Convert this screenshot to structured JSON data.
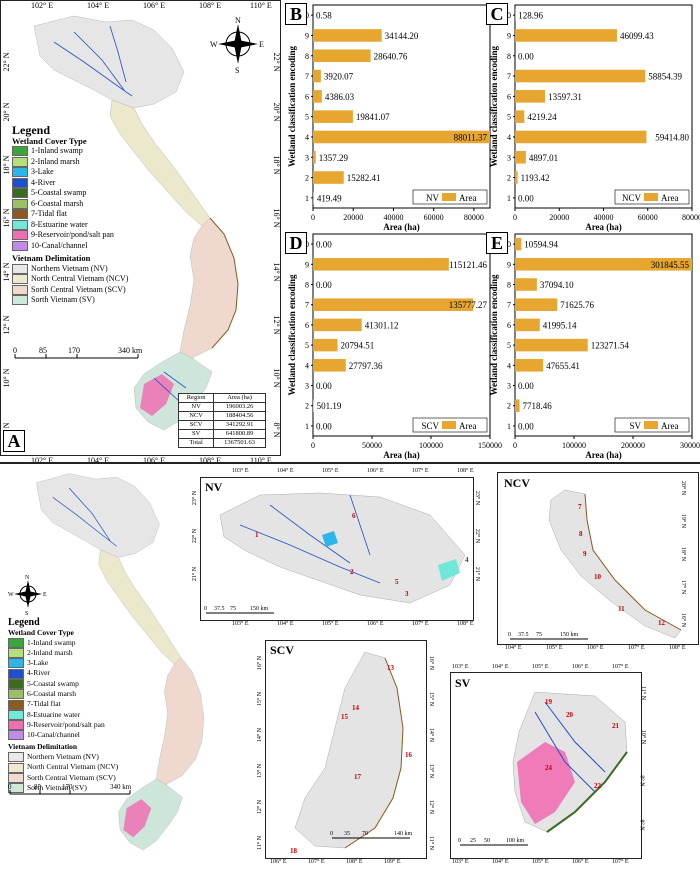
{
  "panel_labels": {
    "a": "A",
    "b": "B",
    "c": "C",
    "d": "D",
    "e": "E"
  },
  "map_a": {
    "lon_ticks": [
      "102° E",
      "104° E",
      "106° E",
      "108° E",
      "110° E"
    ],
    "lat_ticks": [
      "22° N",
      "20° N",
      "18° N",
      "16° N",
      "14° N",
      "12° N",
      "10° N",
      "8° N"
    ],
    "compass": {
      "n": "N",
      "s": "S",
      "e": "E",
      "w": "W"
    },
    "scale": [
      "0",
      "85",
      "170",
      "340 km"
    ]
  },
  "legend": {
    "title": "Legend",
    "wetland_title": "Wetland Cover Type",
    "wetland_items": [
      {
        "label": "1-Inland swamp",
        "color": "#3aa63a"
      },
      {
        "label": "2-Inland marsh",
        "color": "#b3e07a"
      },
      {
        "label": "3-Lake",
        "color": "#2bb5e8"
      },
      {
        "label": "4-River",
        "color": "#1f4fd1"
      },
      {
        "label": "5-Coastal swamp",
        "color": "#3b6b1f"
      },
      {
        "label": "6-Coastal marsh",
        "color": "#9bc066"
      },
      {
        "label": "7-Tidal flat",
        "color": "#8a5a1f"
      },
      {
        "label": "8-Estuarine water",
        "color": "#6fe8d8"
      },
      {
        "label": "9-Reservoir/pond/salt pan",
        "color": "#f06fb3"
      },
      {
        "label": "10-Canal/channel",
        "color": "#c08ae8"
      }
    ],
    "region_title": "Vietnam Delimitation",
    "region_items": [
      {
        "label": "Northern Vietnam (NV)",
        "color": "#e8e8e8"
      },
      {
        "label": "North Central Vietnam (NCV)",
        "color": "#ece9cf"
      },
      {
        "label": "Sorth Central Vietnam (SCV)",
        "color": "#f0d9cf"
      },
      {
        "label": "Sorth Vietnam (SV)",
        "color": "#cfe8dc"
      }
    ]
  },
  "area_table": {
    "headers": [
      "Region",
      "Area (ha)"
    ],
    "rows": [
      [
        "NV",
        "196003.26"
      ],
      [
        "NCV",
        "188404.56"
      ],
      [
        "SCV",
        "341292.91"
      ],
      [
        "SV",
        "641800.89"
      ],
      [
        "Total",
        "1367501.63"
      ]
    ]
  },
  "bottom_maps": {
    "nv": {
      "title": "NV",
      "lon": [
        "103° E",
        "104° E",
        "105° E",
        "106° E",
        "107° E",
        "108° E"
      ],
      "lat": [
        "23° N",
        "22° N",
        "21° N"
      ],
      "scale": [
        "0",
        "37.5",
        "75",
        "150 km"
      ]
    },
    "ncv": {
      "title": "NCV",
      "lon": [
        "104° E",
        "105° E",
        "106° E",
        "107° E",
        "108° E"
      ],
      "lat": [
        "20° N",
        "19° N",
        "18° N",
        "17° N",
        "16° N"
      ],
      "scale": [
        "0",
        "37.5",
        "75",
        "150 km"
      ]
    },
    "scv": {
      "title": "SCV",
      "lon": [
        "106° E",
        "107° E",
        "108° E",
        "109° E"
      ],
      "lat": [
        "16° N",
        "15° N",
        "14° N",
        "13° N",
        "12° N",
        "11° N"
      ],
      "scale": [
        "0",
        "35",
        "70",
        "140 km"
      ]
    },
    "sv": {
      "title": "SV",
      "lon": [
        "103° E",
        "104° E",
        "105° E",
        "106° E",
        "107° E"
      ],
      "lat": [
        "11° N",
        "10° N",
        "9° N",
        "8° N"
      ],
      "scale": [
        "0",
        "25",
        "50",
        "100 km"
      ]
    }
  },
  "chart_data": [
    {
      "type": "bar",
      "panel": "B",
      "orientation": "horizontal",
      "legend": [
        "NV",
        "Area"
      ],
      "ylabel": "Wetland classification encoding",
      "xlabel": "Area (ha)",
      "categories": [
        "1",
        "2",
        "3",
        "4",
        "5",
        "6",
        "7",
        "8",
        "9",
        "10"
      ],
      "values": [
        419.49,
        15282.41,
        1357.29,
        88011.37,
        19841.07,
        4386.03,
        3920.07,
        28640.76,
        34144.2,
        0.58
      ],
      "value_labels": [
        "419.49",
        "15282.41",
        "1357.29",
        "88011.37",
        "19841.07",
        "4386.03",
        "3920.07",
        "28640.76",
        "34144.20",
        "0.58"
      ],
      "xlim": [
        0,
        88000
      ],
      "xticks": [
        "0",
        "20000",
        "40000",
        "60000",
        "80000"
      ],
      "xtick_values": [
        0,
        20000,
        40000,
        60000,
        80000
      ]
    },
    {
      "type": "bar",
      "panel": "C",
      "orientation": "horizontal",
      "legend": [
        "NCV",
        "Area"
      ],
      "ylabel": "Wetland classification encoding",
      "xlabel": "Area (ha)",
      "categories": [
        "1",
        "2",
        "3",
        "4",
        "5",
        "6",
        "7",
        "8",
        "9",
        "10"
      ],
      "values": [
        0,
        1193.42,
        4897.01,
        59414.8,
        4219.24,
        13597.31,
        58854.39,
        0,
        46099.43,
        128.96
      ],
      "value_labels": [
        "0.00",
        "1193.42",
        "4897.01",
        "59414.80",
        "4219.24",
        "13597.31",
        "58854.39",
        "0.00",
        "46099.43",
        "128.96"
      ],
      "xlim": [
        0,
        80000
      ],
      "xticks": [
        "0",
        "20000",
        "40000",
        "60000",
        "80000"
      ],
      "xtick_values": [
        0,
        20000,
        40000,
        60000,
        80000
      ]
    },
    {
      "type": "bar",
      "panel": "D",
      "orientation": "horizontal",
      "legend": [
        "SCV",
        "Area"
      ],
      "ylabel": "Wetland classification encoding",
      "xlabel": "Area (ha)",
      "categories": [
        "1",
        "2",
        "3",
        "4",
        "5",
        "6",
        "7",
        "8",
        "9",
        "10"
      ],
      "values": [
        0,
        501.19,
        0,
        27797.36,
        20794.51,
        41301.12,
        135777.27,
        0,
        115121.46,
        0
      ],
      "value_labels": [
        "0.00",
        "501.19",
        "0.00",
        "27797.36",
        "20794.51",
        "41301.12",
        "135777.27",
        "0.00",
        "115121.46",
        "0.00"
      ],
      "xlim": [
        0,
        150000
      ],
      "xticks": [
        "0",
        "50000",
        "100000",
        "150000"
      ],
      "xtick_values": [
        0,
        50000,
        100000,
        150000
      ]
    },
    {
      "type": "bar",
      "panel": "E",
      "orientation": "horizontal",
      "legend": [
        "SV",
        "Area"
      ],
      "ylabel": "Wetland classification encoding",
      "xlabel": "Area (ha)",
      "categories": [
        "1",
        "2",
        "3",
        "4",
        "5",
        "6",
        "7",
        "8",
        "9",
        "10"
      ],
      "values": [
        0,
        7718.46,
        0,
        47655.41,
        123271.54,
        41995.14,
        71625.76,
        37094.1,
        301845.55,
        10594.94
      ],
      "value_labels": [
        "0.00",
        "7718.46",
        "0.00",
        "47655.41",
        "123271.54",
        "41995.14",
        "71625.76",
        "37094.10",
        "301845.55",
        "10594.94"
      ],
      "xlim": [
        0,
        300000
      ],
      "xticks": [
        "0",
        "100000",
        "200000",
        "300000"
      ],
      "xtick_values": [
        0,
        100000,
        200000,
        300000
      ]
    }
  ]
}
